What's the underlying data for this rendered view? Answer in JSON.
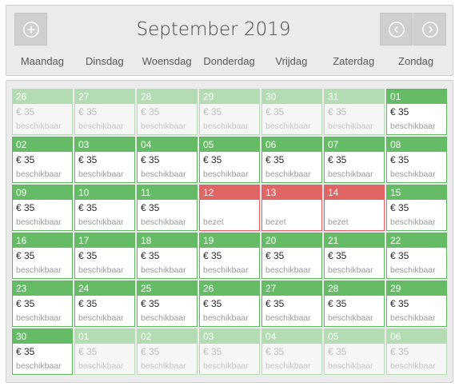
{
  "header": {
    "month_title": "September 2019",
    "weekdays": [
      "Maandag",
      "Dinsdag",
      "Woensdag",
      "Donderdag",
      "Vrijdag",
      "Zaterdag",
      "Zondag"
    ]
  },
  "weeks": [
    [
      {
        "day": "26",
        "price": "€ 35",
        "status": "beschikbaar",
        "state": "other"
      },
      {
        "day": "27",
        "price": "€ 35",
        "status": "beschikbaar",
        "state": "other"
      },
      {
        "day": "28",
        "price": "€ 35",
        "status": "beschikbaar",
        "state": "other"
      },
      {
        "day": "29",
        "price": "€ 35",
        "status": "beschikbaar",
        "state": "other"
      },
      {
        "day": "30",
        "price": "€ 35",
        "status": "beschikbaar",
        "state": "other"
      },
      {
        "day": "31",
        "price": "€ 35",
        "status": "beschikbaar",
        "state": "other"
      },
      {
        "day": "01",
        "price": "€ 35",
        "status": "beschikbaar",
        "state": "available"
      }
    ],
    [
      {
        "day": "02",
        "price": "€ 35",
        "status": "beschikbaar",
        "state": "available"
      },
      {
        "day": "03",
        "price": "€ 35",
        "status": "beschikbaar",
        "state": "available"
      },
      {
        "day": "04",
        "price": "€ 35",
        "status": "beschikbaar",
        "state": "available"
      },
      {
        "day": "05",
        "price": "€ 35",
        "status": "beschikbaar",
        "state": "available"
      },
      {
        "day": "06",
        "price": "€ 35",
        "status": "beschikbaar",
        "state": "available"
      },
      {
        "day": "07",
        "price": "€ 35",
        "status": "beschikbaar",
        "state": "available"
      },
      {
        "day": "08",
        "price": "€ 35",
        "status": "beschikbaar",
        "state": "available"
      }
    ],
    [
      {
        "day": "09",
        "price": "€ 35",
        "status": "beschikbaar",
        "state": "available"
      },
      {
        "day": "10",
        "price": "€ 35",
        "status": "beschikbaar",
        "state": "available"
      },
      {
        "day": "11",
        "price": "€ 35",
        "status": "beschikbaar",
        "state": "available"
      },
      {
        "day": "12",
        "price": "",
        "status": "bezet",
        "state": "booked"
      },
      {
        "day": "13",
        "price": "",
        "status": "bezet",
        "state": "booked"
      },
      {
        "day": "14",
        "price": "",
        "status": "bezet",
        "state": "booked"
      },
      {
        "day": "15",
        "price": "€ 35",
        "status": "beschikbaar",
        "state": "available"
      }
    ],
    [
      {
        "day": "16",
        "price": "€ 35",
        "status": "beschikbaar",
        "state": "available"
      },
      {
        "day": "17",
        "price": "€ 35",
        "status": "beschikbaar",
        "state": "available"
      },
      {
        "day": "18",
        "price": "€ 35",
        "status": "beschikbaar",
        "state": "available"
      },
      {
        "day": "19",
        "price": "€ 35",
        "status": "beschikbaar",
        "state": "available"
      },
      {
        "day": "20",
        "price": "€ 35",
        "status": "beschikbaar",
        "state": "available"
      },
      {
        "day": "21",
        "price": "€ 35",
        "status": "beschikbaar",
        "state": "available"
      },
      {
        "day": "22",
        "price": "€ 35",
        "status": "beschikbaar",
        "state": "available"
      }
    ],
    [
      {
        "day": "23",
        "price": "€ 35",
        "status": "beschikbaar",
        "state": "available"
      },
      {
        "day": "24",
        "price": "€ 35",
        "status": "beschikbaar",
        "state": "available"
      },
      {
        "day": "25",
        "price": "€ 35",
        "status": "beschikbaar",
        "state": "available"
      },
      {
        "day": "26",
        "price": "€ 35",
        "status": "beschikbaar",
        "state": "available"
      },
      {
        "day": "27",
        "price": "€ 35",
        "status": "beschikbaar",
        "state": "available"
      },
      {
        "day": "28",
        "price": "€ 35",
        "status": "beschikbaar",
        "state": "available"
      },
      {
        "day": "29",
        "price": "€ 35",
        "status": "beschikbaar",
        "state": "available"
      }
    ],
    [
      {
        "day": "30",
        "price": "€ 35",
        "status": "beschikbaar",
        "state": "available"
      },
      {
        "day": "01",
        "price": "€ 35",
        "status": "beschikbaar",
        "state": "other"
      },
      {
        "day": "02",
        "price": "€ 35",
        "status": "beschikbaar",
        "state": "other"
      },
      {
        "day": "03",
        "price": "€ 35",
        "status": "beschikbaar",
        "state": "other"
      },
      {
        "day": "04",
        "price": "€ 35",
        "status": "beschikbaar",
        "state": "other"
      },
      {
        "day": "05",
        "price": "€ 35",
        "status": "beschikbaar",
        "state": "other"
      },
      {
        "day": "06",
        "price": "€ 35",
        "status": "beschikbaar",
        "state": "other"
      }
    ]
  ],
  "colors": {
    "available": "#66bb66",
    "other_month": "#b3dcb3",
    "booked": "#e06666"
  },
  "icons": {
    "add": "plus-circle-icon",
    "prev": "chevron-left-circle-icon",
    "next": "chevron-right-circle-icon"
  }
}
